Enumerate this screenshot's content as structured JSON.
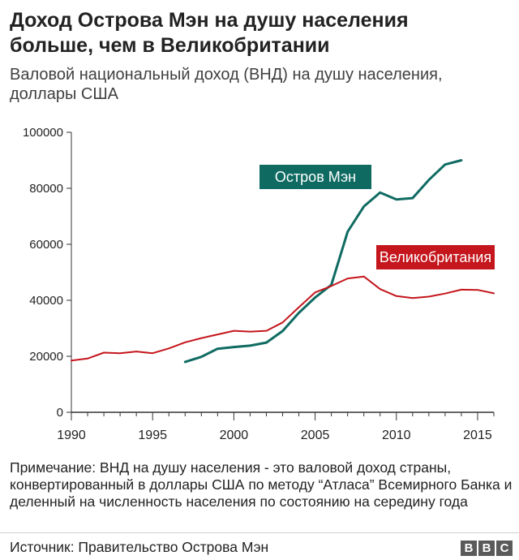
{
  "title": "Доход Острова Мэн на душу населения больше, чем в Великобритании",
  "subtitle": "Валовой национальный доход (ВНД) на душу населения, доллары США",
  "note": "Примечание: ВНД на душу населения - это валовой доход страны, конвертированный в доллары США по методу “Атласа” Всемирного Банка и деленный на численность населения по состоянию на середину года",
  "source": "Источник: Правительство Острова Мэн",
  "logo": [
    "B",
    "B",
    "C"
  ],
  "colors": {
    "isle_of_man": "#0f6b62",
    "uk": "#c4161c",
    "axis": "#333333"
  },
  "chart_data": {
    "type": "line",
    "xlim": [
      1990,
      2016
    ],
    "ylim": [
      0,
      100000
    ],
    "grid": false,
    "x_ticks": [
      1990,
      1995,
      2000,
      2005,
      2010,
      2015
    ],
    "y_ticks": [
      0,
      20000,
      40000,
      60000,
      80000,
      100000
    ],
    "series": [
      {
        "name": "Остров Мэн",
        "color": "#0f6b62",
        "x": [
          1997,
          1998,
          1999,
          2000,
          2001,
          2002,
          2003,
          2004,
          2005,
          2006,
          2007,
          2008,
          2009,
          2010,
          2011,
          2012,
          2013,
          2014
        ],
        "values": [
          18000,
          19800,
          22700,
          23300,
          23800,
          24900,
          29000,
          35500,
          41000,
          45500,
          64500,
          73500,
          78500,
          76000,
          76500,
          83000,
          88500,
          90000
        ]
      },
      {
        "name": "Великобритания",
        "color": "#c4161c",
        "x": [
          1990,
          1991,
          1992,
          1993,
          1994,
          1995,
          1996,
          1997,
          1998,
          1999,
          2000,
          2001,
          2002,
          2003,
          2004,
          2005,
          2006,
          2007,
          2008,
          2009,
          2010,
          2011,
          2012,
          2013,
          2014,
          2015,
          2016
        ],
        "values": [
          18500,
          19200,
          21300,
          21100,
          21700,
          21100,
          22800,
          25000,
          26500,
          27800,
          29100,
          28800,
          29100,
          32100,
          37500,
          42800,
          45100,
          47800,
          48500,
          44000,
          41500,
          40800,
          41300,
          42400,
          43800,
          43700,
          42500
        ]
      }
    ]
  }
}
